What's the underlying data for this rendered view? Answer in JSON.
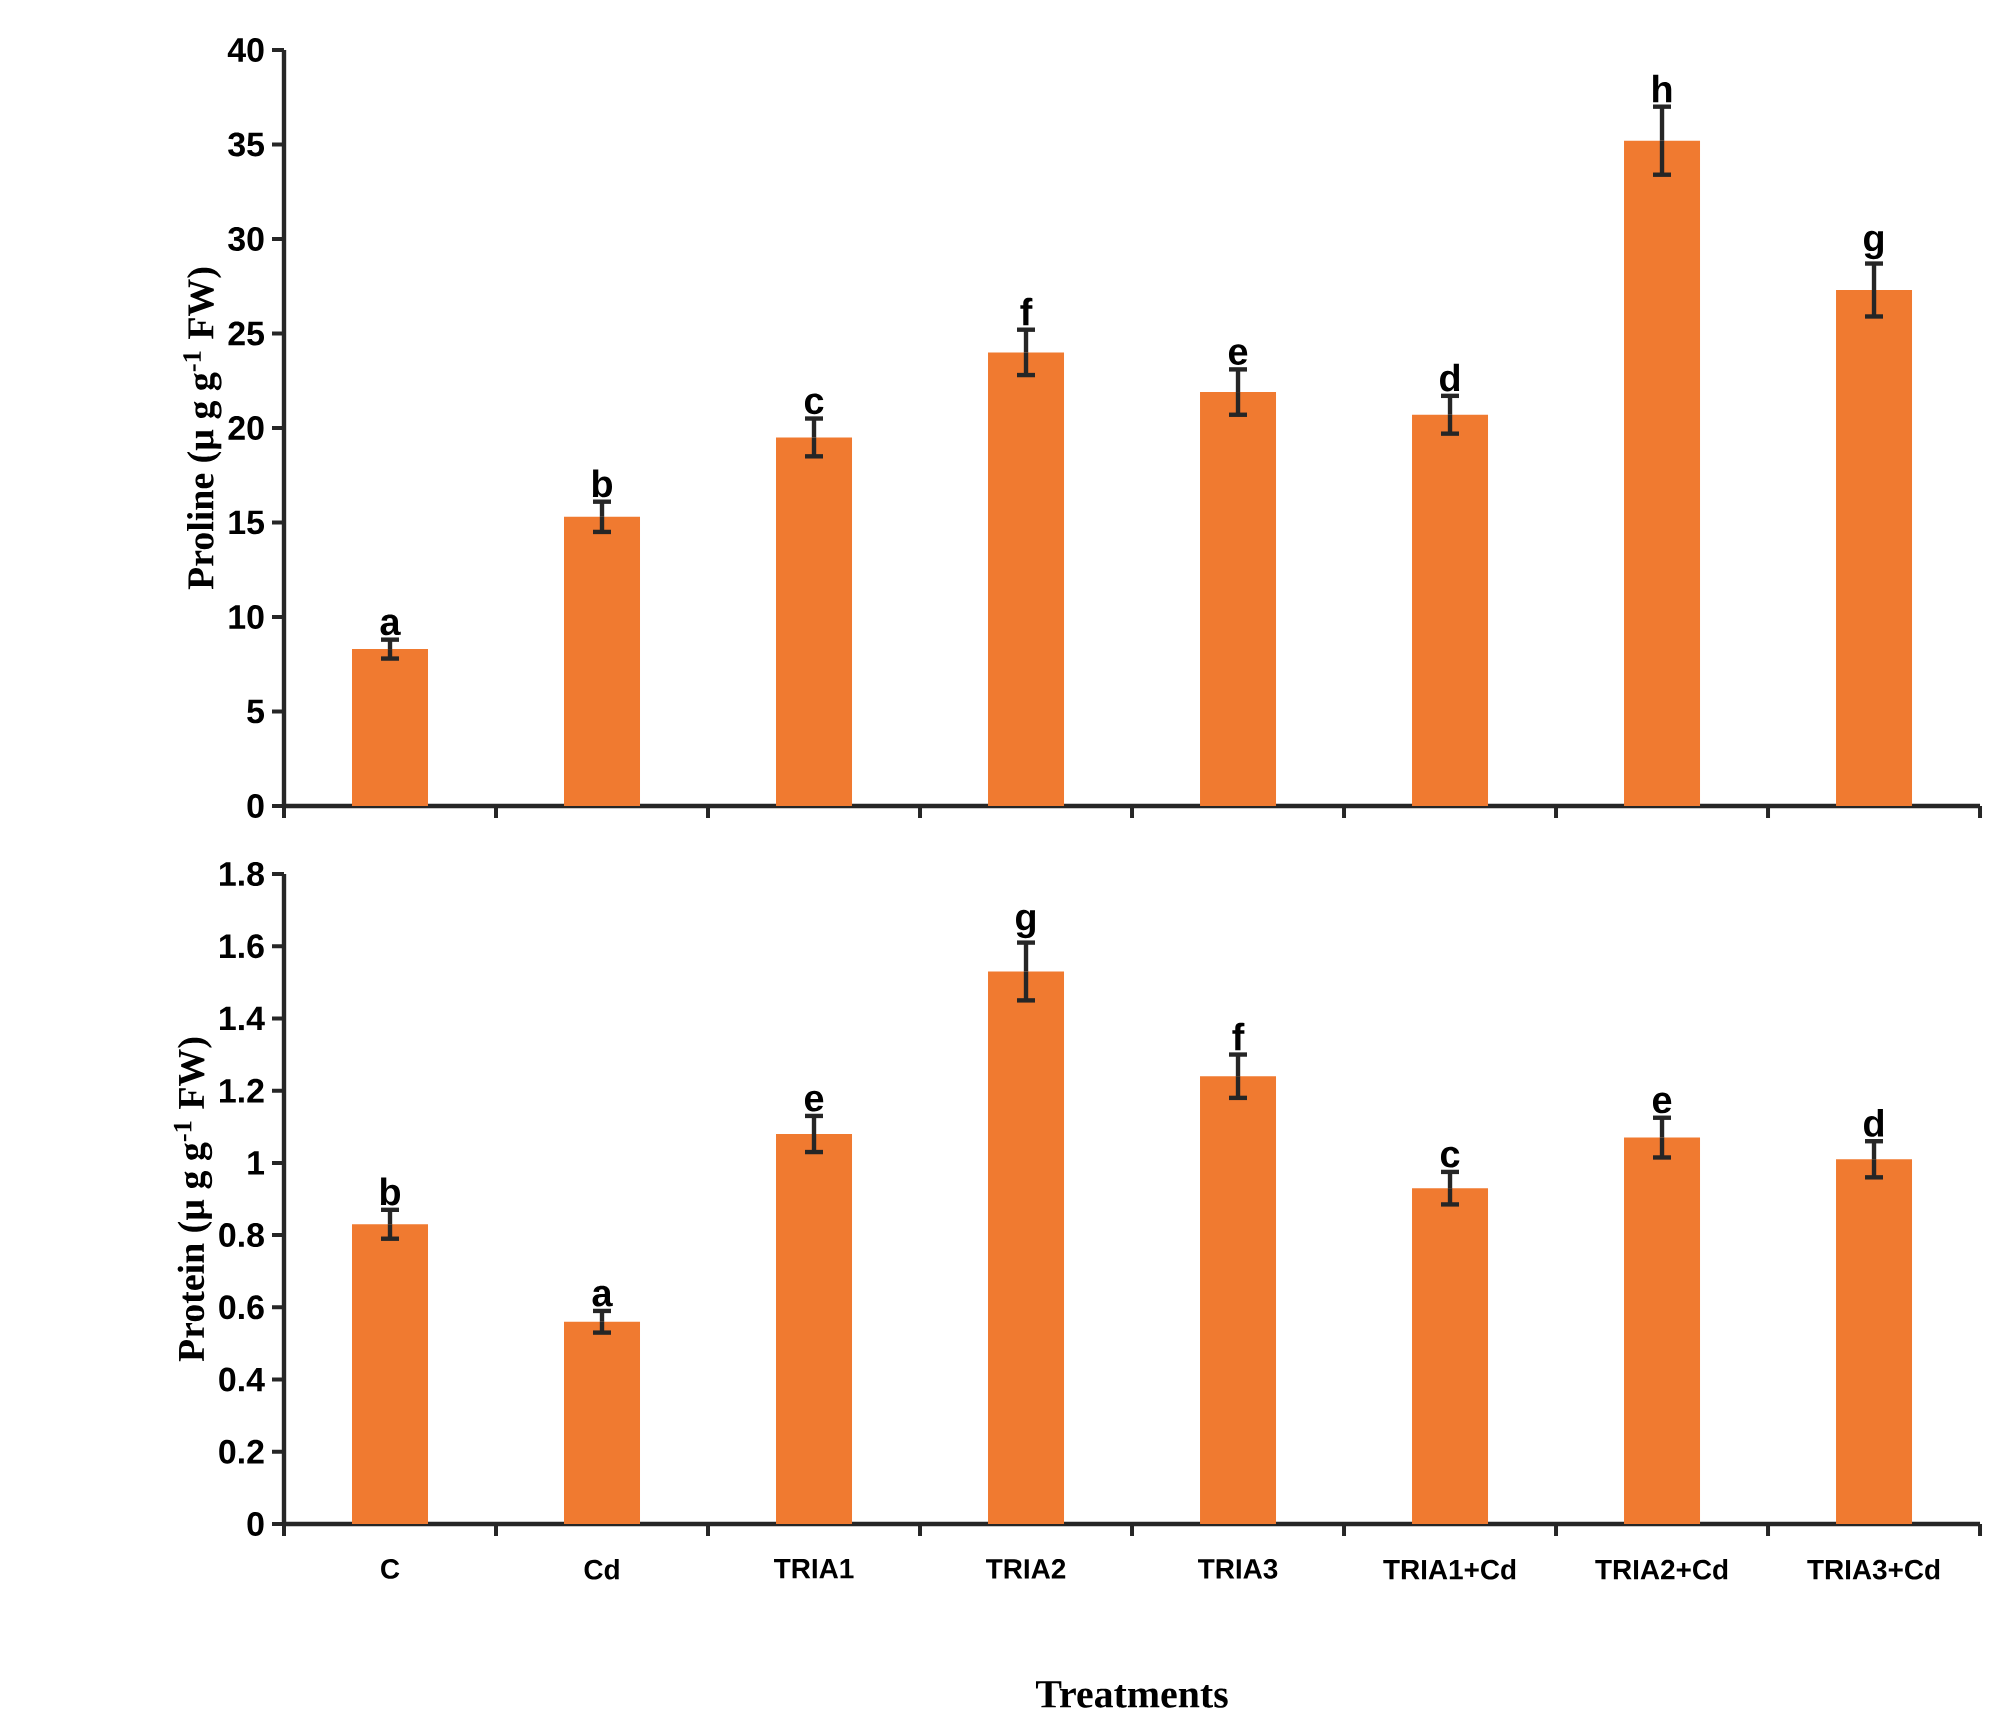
{
  "chart_data": [
    {
      "type": "bar",
      "ylabel": "Proline  (µ g g$^{-1}$ FW)",
      "categories": [
        null,
        null,
        null,
        null,
        null,
        null,
        null,
        null
      ],
      "values": [
        8.3,
        15.3,
        19.5,
        24.0,
        21.9,
        20.7,
        35.2,
        27.3
      ],
      "errors": [
        0.5,
        0.8,
        1.0,
        1.2,
        1.2,
        1.0,
        1.8,
        1.4
      ],
      "color": "#f07a30",
      "ylim": [
        0,
        40
      ],
      "yticks": [
        0,
        5,
        10,
        15,
        20,
        25,
        30,
        35,
        40
      ],
      "tick_labels": "y",
      "annotations": [
        {
          "text": "a",
          "y": 8.8
        },
        {
          "text": "b",
          "y": 16.1
        },
        {
          "text": "c",
          "y": 20.5
        },
        {
          "text": "f",
          "y": 25.2
        },
        {
          "text": "e",
          "y": 23.1
        },
        {
          "text": "d",
          "y": 21.7
        },
        {
          "text": "h",
          "y": 37.0
        },
        {
          "text": "g",
          "y": 28.7
        }
      ]
    },
    {
      "type": "bar",
      "xlabel": "Treatments",
      "ylabel": "Protein  (µ g g$^{-1}$ FW)",
      "categories": [
        "C",
        "Cd",
        "TRIA1",
        "TRIA2",
        "TRIA3",
        "TRIA1+Cd",
        "TRIA2+Cd",
        "TRIA3+Cd"
      ],
      "values": [
        0.83,
        0.56,
        1.08,
        1.53,
        1.24,
        0.93,
        1.07,
        1.01
      ],
      "errors": [
        0.04,
        0.03,
        0.05,
        0.08,
        0.06,
        0.045,
        0.055,
        0.05
      ],
      "color": "#f07a30",
      "ylim": [
        0,
        1.8
      ],
      "yticks": [
        0,
        0.2,
        0.4,
        0.6,
        0.8,
        1,
        1.2,
        1.4,
        1.6,
        1.8
      ],
      "annotations": [
        {
          "text": "b",
          "x": "C",
          "y": 0.87
        },
        {
          "text": "a",
          "x": "Cd",
          "y": 0.59
        },
        {
          "text": "e",
          "x": "TRIA1",
          "y": 1.13
        },
        {
          "text": "g",
          "x": "TRIA2",
          "y": 1.61
        },
        {
          "text": "f",
          "x": "TRIA3",
          "y": 1.3
        },
        {
          "text": "c",
          "x": "TRIA1+Cd",
          "y": 0.975
        },
        {
          "text": "e",
          "x": "TRIA2+Cd",
          "y": 1.125
        },
        {
          "text": "d",
          "x": "TRIA3+Cd",
          "y": 1.06
        }
      ]
    }
  ]
}
